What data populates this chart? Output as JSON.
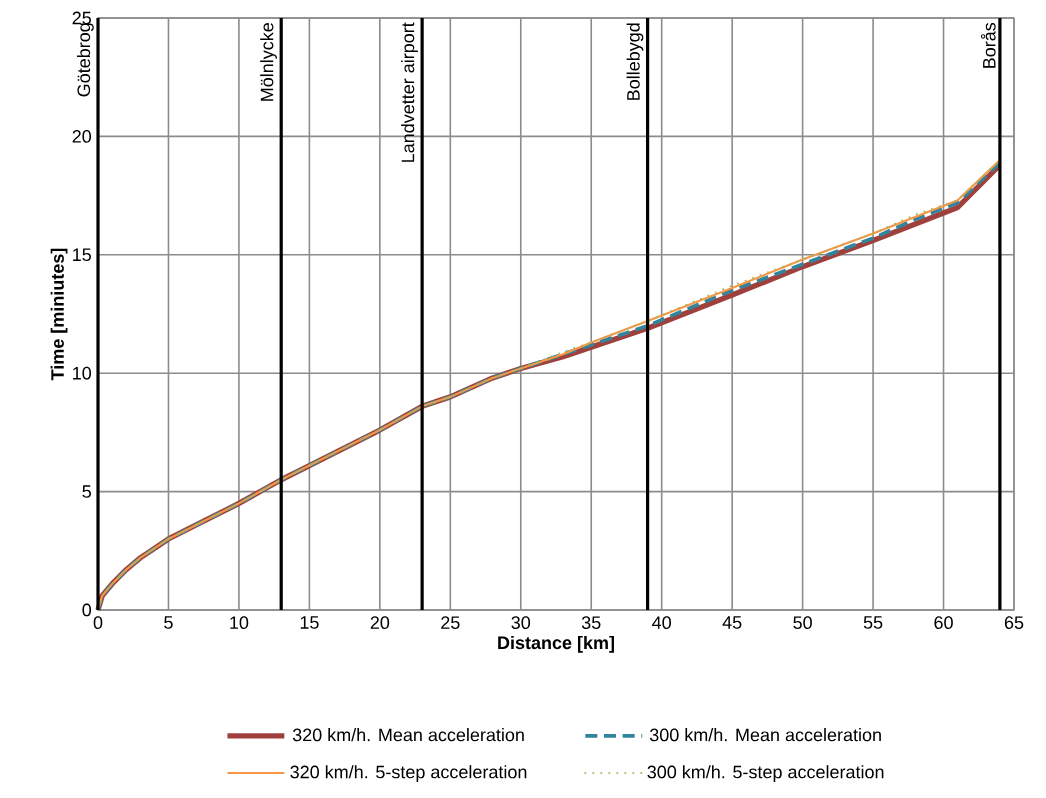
{
  "chart_data": {
    "type": "line",
    "xlabel": "Distance [km]",
    "ylabel": "Time [miniutes]",
    "x": [
      0,
      0.3,
      1,
      2,
      3,
      5,
      7,
      10,
      13,
      15,
      20,
      23,
      25,
      28,
      30,
      33,
      35,
      39,
      45,
      50,
      55,
      58,
      61,
      64
    ],
    "series": [
      {
        "name": "320 km/h. Mean acceleration",
        "color": "#a0403c",
        "line_style": "solid",
        "values": [
          0,
          0.6,
          1.1,
          1.7,
          2.2,
          3.0,
          3.6,
          4.5,
          5.5,
          6.1,
          7.6,
          8.6,
          9.0,
          9.8,
          10.2,
          10.7,
          11.1,
          11.9,
          13.3,
          14.5,
          15.6,
          16.3,
          17.0,
          18.8
        ]
      },
      {
        "name": "300 km/h. Mean acceleration",
        "color": "#31849b",
        "line_style": "dashed",
        "values": [
          0,
          0.6,
          1.1,
          1.7,
          2.2,
          3.0,
          3.6,
          4.5,
          5.5,
          6.1,
          7.6,
          8.6,
          9.0,
          9.8,
          10.2,
          10.8,
          11.2,
          12.0,
          13.5,
          14.6,
          15.7,
          16.5,
          17.2,
          18.9
        ]
      },
      {
        "name": "320 km/h. 5-step acceleration",
        "color": "#f79646",
        "line_style": "solid",
        "values": [
          0,
          0.6,
          1.1,
          1.7,
          2.2,
          3.0,
          3.6,
          4.5,
          5.5,
          6.1,
          7.6,
          8.6,
          9.0,
          9.8,
          10.2,
          10.8,
          11.3,
          12.2,
          13.6,
          14.8,
          15.9,
          16.6,
          17.3,
          19.0
        ]
      },
      {
        "name": "300 km/h. 5-step acceleration",
        "color": "#9bbb59",
        "line_style": "dotted",
        "values": [
          0,
          0.6,
          1.1,
          1.7,
          2.2,
          3.0,
          3.6,
          4.5,
          5.5,
          6.1,
          7.6,
          8.6,
          9.0,
          9.8,
          10.2,
          10.9,
          11.3,
          12.2,
          13.7,
          14.8,
          15.9,
          16.7,
          17.3,
          19.0
        ]
      }
    ],
    "xlim": [
      0,
      65
    ],
    "xticks": [
      0,
      5,
      10,
      15,
      20,
      25,
      30,
      35,
      40,
      45,
      50,
      55,
      60,
      65
    ],
    "ylim": [
      0,
      25
    ],
    "yticks": [
      0,
      5,
      10,
      15,
      20,
      25
    ],
    "ref_lines": [
      {
        "axis": "x",
        "value": 0,
        "label": "Götebrog",
        "color": "#000000"
      },
      {
        "axis": "x",
        "value": 13,
        "label": "Mölnlycke",
        "color": "#000000"
      },
      {
        "axis": "x",
        "value": 23,
        "label": "Landvetter airport",
        "color": "#000000"
      },
      {
        "axis": "x",
        "value": 39,
        "label": "Bollebygd",
        "color": "#000000"
      },
      {
        "axis": "x",
        "value": 64,
        "label": "Borås",
        "color": "#000000"
      }
    ],
    "grid": true,
    "legend": "bottom",
    "marker": "none"
  }
}
